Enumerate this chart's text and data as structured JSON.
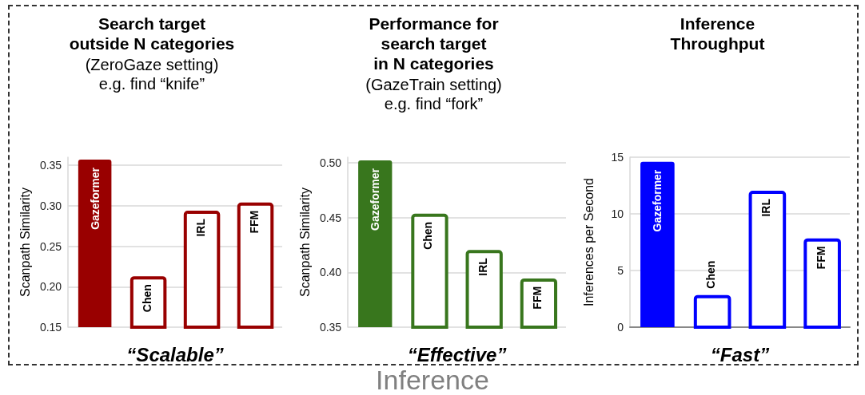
{
  "chart_data": [
    {
      "type": "bar",
      "title": "Search target\noutside N categories",
      "subtitle": "(ZeroGaze setting)\ne.g. find “knife”",
      "xlabel": "“Scalable”",
      "ylabel": "Scanpath Similarity",
      "categories": [
        "Gazeformer",
        "Chen",
        "IRL",
        "FFM"
      ],
      "values": [
        0.357,
        0.211,
        0.292,
        0.302
      ],
      "color": "#990000",
      "colors": [
        "#990000",
        "#ffffff",
        "#ffffff",
        "#ffffff"
      ],
      "ylim": [
        0.15,
        0.36
      ],
      "yticks": [
        0.15,
        {
          "value": 0.2,
          "label": "0.20"
        },
        0.25,
        {
          "value": 0.3,
          "label": "0.30"
        },
        0.35
      ],
      "grid": "y"
    },
    {
      "type": "bar",
      "title": "Performance for\nsearch target\nin N categories",
      "subtitle": "(GazeTrain setting)\ne.g. find “fork”",
      "xlabel": "“Effective”",
      "ylabel": "Scanpath Similarity",
      "categories": [
        "Gazeformer",
        "Chen",
        "IRL",
        "FFM"
      ],
      "values": [
        0.502,
        0.452,
        0.419,
        0.393
      ],
      "color": "#38761d",
      "colors": [
        "#38761d",
        "#ffffff",
        "#ffffff",
        "#ffffff"
      ],
      "ylim": [
        0.35,
        0.505
      ],
      "yticks": [
        0.35,
        {
          "value": 0.4,
          "label": "0.40"
        },
        0.45,
        {
          "value": 0.5,
          "label": "0.50"
        }
      ],
      "grid": "y",
      "annotations": [
        "Inference"
      ]
    },
    {
      "type": "bar",
      "title": "Inference\nThroughput",
      "xlabel": "“Fast”",
      "ylabel": "Inferences per Second",
      "categories": [
        "Gazeformer",
        "Chen",
        "IRL",
        "FFM"
      ],
      "values": [
        14.6,
        2.7,
        11.9,
        7.7
      ],
      "color": "#0000ff",
      "colors": [
        "#0000ff",
        "#ffffff",
        "#ffffff",
        "#ffffff"
      ],
      "ylim": [
        0,
        15
      ],
      "yticks": [
        0,
        5,
        10,
        15
      ],
      "grid": "y"
    }
  ]
}
